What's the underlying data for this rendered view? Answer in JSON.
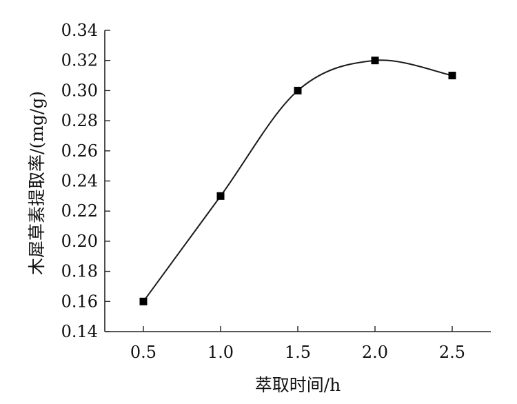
{
  "chart_data": {
    "type": "line",
    "title": "",
    "xlabel": "萃取时间/h",
    "ylabel": "木犀草素提取率/(mg/g)",
    "x": [
      0.5,
      1.0,
      1.5,
      2.0,
      2.5
    ],
    "xticks": [
      "0.5",
      "1.0",
      "1.5",
      "2.0",
      "2.5"
    ],
    "yticks": [
      "0.14",
      "0.16",
      "0.18",
      "0.20",
      "0.22",
      "0.24",
      "0.26",
      "0.28",
      "0.30",
      "0.32",
      "0.34"
    ],
    "ylim": [
      0.14,
      0.34
    ],
    "series": [
      {
        "values": [
          0.16,
          0.23,
          0.3,
          0.32,
          0.31
        ],
        "marker": "square",
        "smooth": true
      }
    ],
    "grid": false,
    "colors": {
      "line": "#1a1a1a",
      "marker": "#000000",
      "axis": "#222222"
    }
  }
}
